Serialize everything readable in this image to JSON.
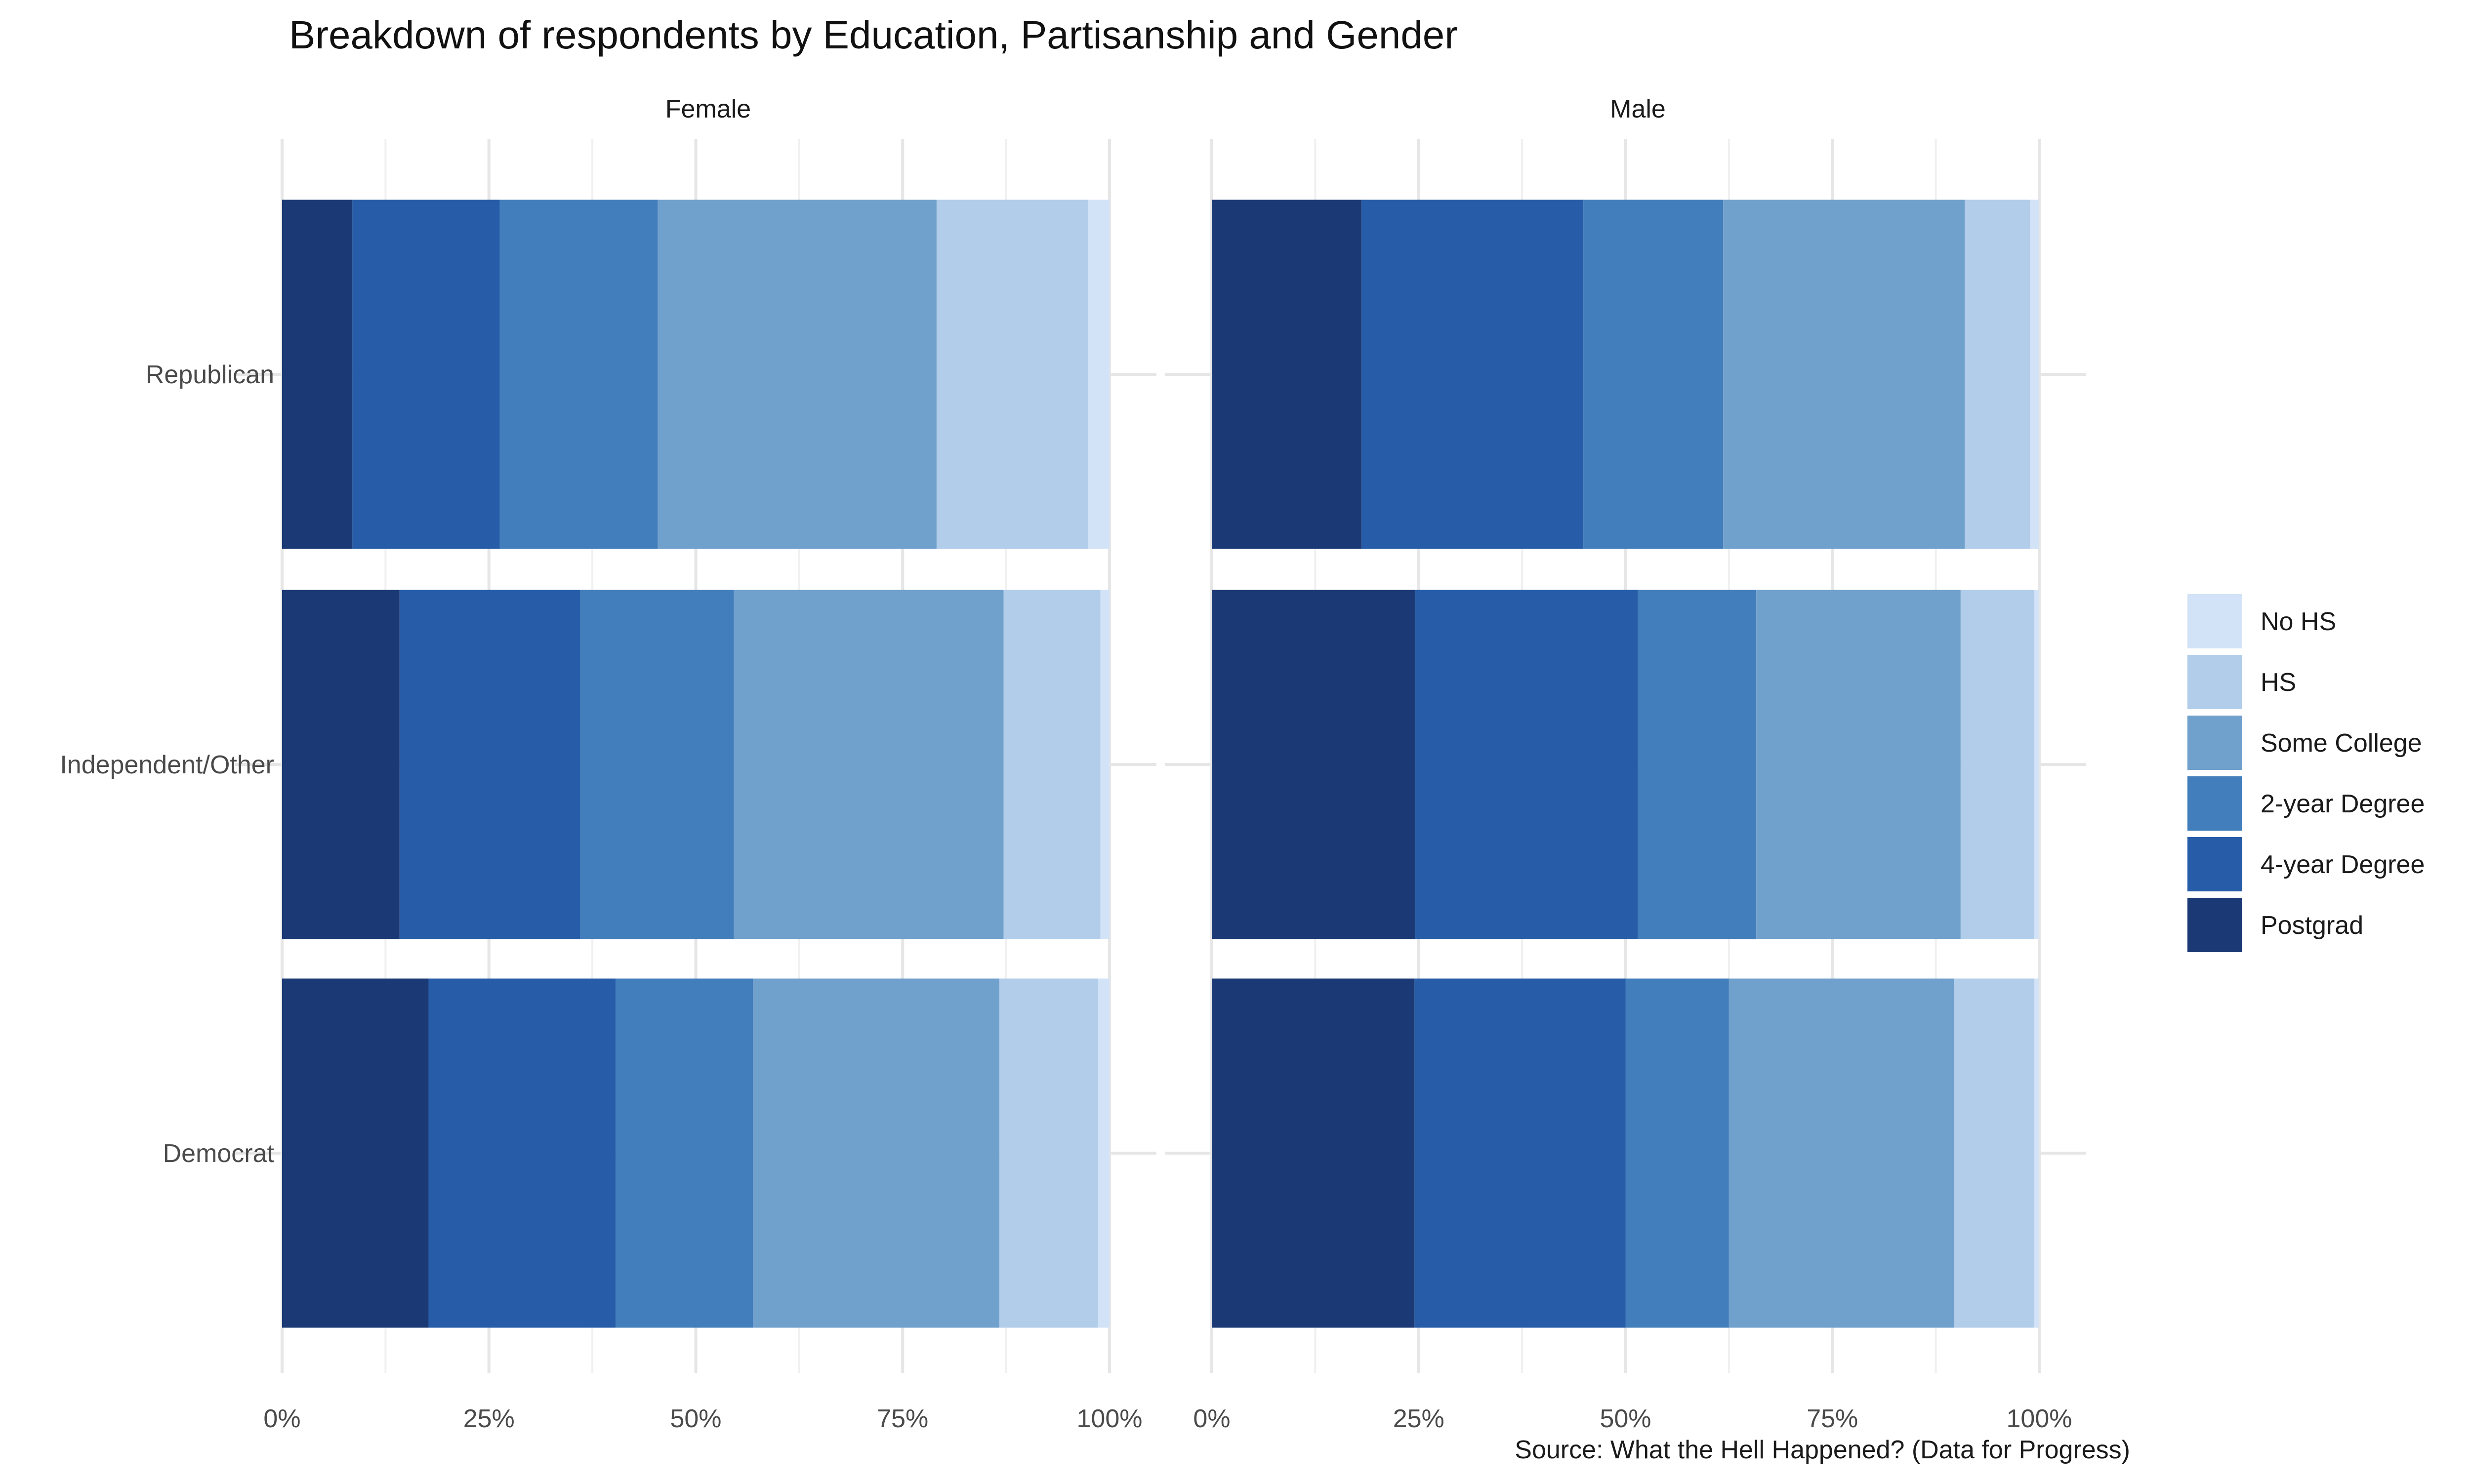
{
  "chart_data": {
    "type": "bar",
    "orientation": "horizontal",
    "stacking": "fill",
    "title": "Breakdown of respondents by Education, Partisanship and Gender",
    "caption": "Source: What the Hell Happened? (Data for Progress)",
    "facets": [
      "Female",
      "Male"
    ],
    "categories": [
      "Republican",
      "Independent/Other",
      "Democrat"
    ],
    "x_ticks": [
      "0%",
      "25%",
      "50%",
      "75%",
      "100%"
    ],
    "xlim": [
      0,
      100
    ],
    "grid": true,
    "legend_position": "right",
    "series": [
      {
        "name": "Postgrad",
        "color": "#1b3a75",
        "values": {
          "Female": [
            8.5,
            14.2,
            17.7
          ],
          "Male": [
            18.1,
            24.6,
            24.5
          ]
        }
      },
      {
        "name": "4-year Degree",
        "color": "#275da8",
        "values": {
          "Female": [
            17.8,
            21.8,
            22.6
          ],
          "Male": [
            26.8,
            26.9,
            25.5
          ]
        }
      },
      {
        "name": "2-year Degree",
        "color": "#437ebc",
        "values": {
          "Female": [
            19.1,
            18.6,
            16.6
          ],
          "Male": [
            16.9,
            14.3,
            12.5
          ]
        }
      },
      {
        "name": "Some College",
        "color": "#70a0cc",
        "values": {
          "Female": [
            33.7,
            32.6,
            29.8
          ],
          "Male": [
            29.2,
            24.7,
            27.2
          ]
        }
      },
      {
        "name": "HS",
        "color": "#b1cdea",
        "values": {
          "Female": [
            18.3,
            11.7,
            11.9
          ],
          "Male": [
            7.9,
            8.9,
            9.7
          ]
        }
      },
      {
        "name": "No HS",
        "color": "#d3e3f7",
        "values": {
          "Female": [
            2.6,
            1.1,
            1.4
          ],
          "Male": [
            1.1,
            0.6,
            0.6
          ]
        }
      }
    ],
    "legend_order": [
      "No HS",
      "HS",
      "Some College",
      "2-year Degree",
      "4-year Degree",
      "Postgrad"
    ]
  }
}
